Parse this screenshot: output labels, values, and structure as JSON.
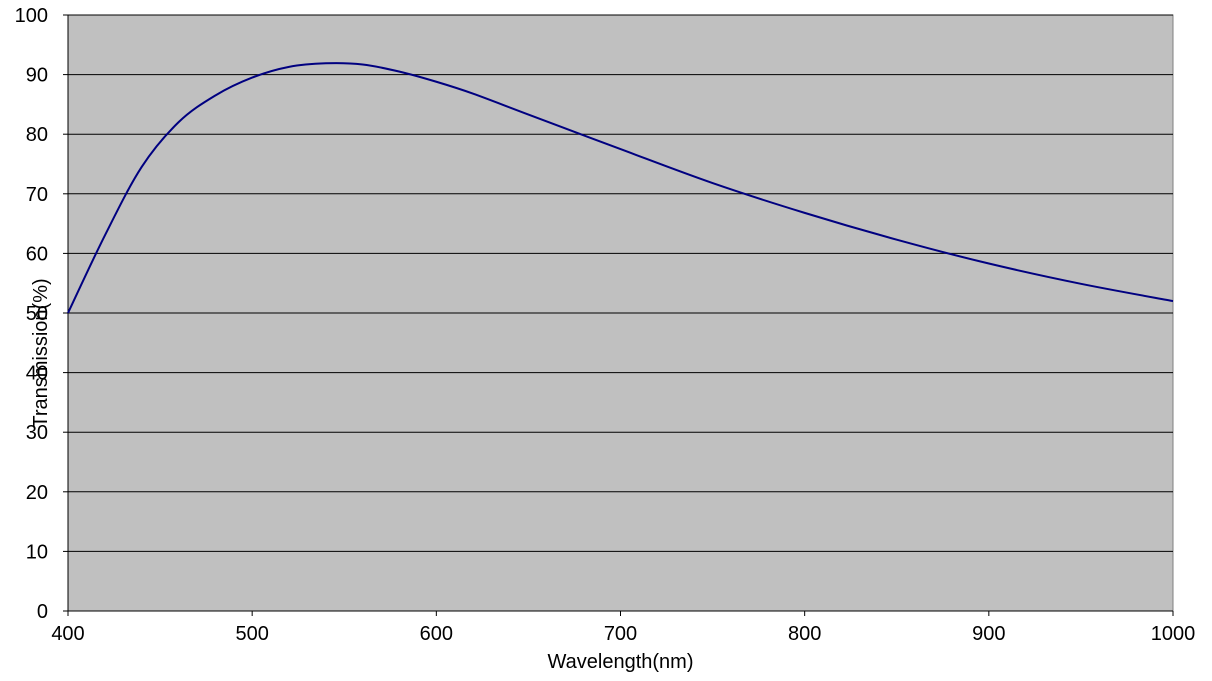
{
  "chart_data": {
    "type": "line",
    "title": "",
    "xlabel": "Wavelength(nm)",
    "ylabel": "Transmission(%)",
    "xlim": [
      400,
      1000
    ],
    "ylim": [
      0,
      100
    ],
    "xticks": [
      400,
      500,
      600,
      700,
      800,
      900,
      1000
    ],
    "yticks": [
      0,
      10,
      20,
      30,
      40,
      50,
      60,
      70,
      80,
      90,
      100
    ],
    "grid": "horizontal",
    "legend": "none",
    "colors": {
      "plot_background": "#c0c0c0",
      "line": "#000080",
      "gridline": "#000000"
    },
    "series": [
      {
        "x": [
          400,
          420,
          440,
          460,
          480,
          500,
          520,
          540,
          560,
          580,
          600,
          620,
          650,
          700,
          750,
          800,
          850,
          900,
          950,
          1000
        ],
        "y": [
          50,
          63,
          74.5,
          82,
          86.5,
          89.5,
          91.3,
          91.9,
          91.7,
          90.5,
          88.8,
          86.8,
          83.3,
          77.5,
          71.8,
          66.8,
          62.3,
          58.3,
          54.9,
          52
        ]
      }
    ]
  }
}
